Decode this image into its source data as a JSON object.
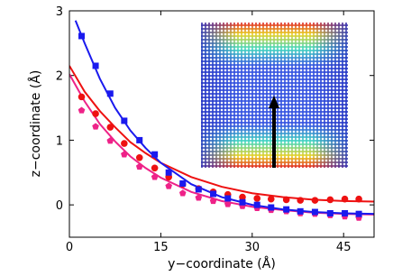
{
  "chart_data": {
    "type": "scatter",
    "x_label": "y−coordinate (Å)",
    "y_label": "z−coordinate (Å)",
    "xlim": [
      0,
      50
    ],
    "ylim": [
      -0.5,
      3
    ],
    "xticks": [
      0,
      15,
      30,
      45
    ],
    "yticks": [
      0,
      1,
      2,
      3
    ],
    "series": [
      {
        "color": "#ee1111",
        "marker": "circle",
        "x": [
          2,
          4.3,
          6.7,
          9,
          11.5,
          14,
          16.3,
          18.6,
          21.2,
          23.6,
          26,
          28.4,
          30.8,
          33.1,
          35.6,
          37.9,
          40.3,
          42.8,
          45.2,
          47.5
        ],
        "values": [
          1.67,
          1.41,
          1.2,
          0.95,
          0.73,
          0.57,
          0.43,
          0.32,
          0.25,
          0.2,
          0.16,
          0.12,
          0.1,
          0.09,
          0.08,
          0.07,
          0.07,
          0.08,
          0.09,
          0.09
        ]
      },
      {
        "color": "#ee2288",
        "marker": "pentagon",
        "x": [
          2,
          4.3,
          6.7,
          9,
          11.5,
          14,
          16.3,
          18.6,
          21.2,
          23.6,
          26,
          28.4,
          30.8,
          33.1,
          35.6,
          37.9,
          40.3,
          42.8,
          45.2,
          47.5
        ],
        "values": [
          1.46,
          1.21,
          0.99,
          0.78,
          0.59,
          0.43,
          0.29,
          0.18,
          0.11,
          0.06,
          0.01,
          -0.02,
          -0.05,
          -0.08,
          -0.1,
          -0.13,
          -0.14,
          -0.16,
          -0.18,
          -0.2
        ]
      },
      {
        "color": "#1a1aee",
        "marker": "square",
        "x": [
          2,
          4.3,
          6.7,
          9,
          11.5,
          14,
          16.3,
          18.6,
          21.2,
          23.6,
          26,
          28.4,
          30.8,
          33.1,
          35.6,
          37.9,
          40.3,
          42.8,
          45.2,
          47.5
        ],
        "values": [
          2.61,
          2.15,
          1.72,
          1.3,
          1.0,
          0.78,
          0.5,
          0.33,
          0.24,
          0.17,
          0.1,
          0.04,
          0,
          -0.04,
          -0.07,
          -0.1,
          -0.11,
          -0.13,
          -0.13,
          -0.14
        ]
      }
    ],
    "fits": [
      {
        "color": "#ee1111",
        "x": [
          0,
          2.5,
          5,
          7.5,
          10,
          12.5,
          15,
          20,
          25,
          30,
          35,
          40,
          45,
          50
        ],
        "values": [
          2.15,
          1.75,
          1.45,
          1.2,
          0.97,
          0.8,
          0.65,
          0.43,
          0.28,
          0.18,
          0.12,
          0.08,
          0.06,
          0.05
        ]
      },
      {
        "color": "#ee2288",
        "x": [
          0,
          2.5,
          5,
          7.5,
          10,
          12.5,
          15,
          20,
          25,
          30,
          35,
          40,
          45,
          50
        ],
        "values": [
          2.02,
          1.6,
          1.25,
          0.98,
          0.75,
          0.57,
          0.42,
          0.2,
          0.06,
          -0.03,
          -0.08,
          -0.12,
          -0.14,
          -0.15
        ]
      },
      {
        "color": "#1a1aee",
        "x": [
          1,
          2.5,
          5,
          7.5,
          10,
          12.5,
          15,
          20,
          25,
          30,
          35,
          40,
          45,
          50
        ],
        "values": [
          2.85,
          2.5,
          1.95,
          1.5,
          1.15,
          0.88,
          0.65,
          0.32,
          0.12,
          0,
          -0.07,
          -0.11,
          -0.13,
          -0.14
        ]
      }
    ]
  }
}
